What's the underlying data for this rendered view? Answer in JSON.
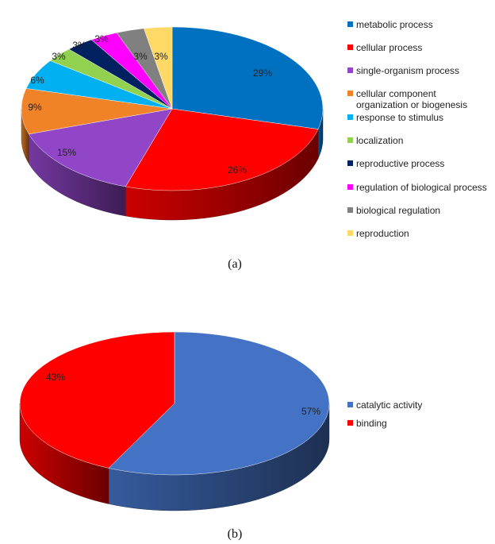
{
  "chart_data": [
    {
      "type": "pie",
      "style": "3d",
      "caption": "(a)",
      "categories": [
        "metabolic process",
        "cellular process",
        "single-organism process",
        "cellular component organization or biogenesis",
        "response to stimulus",
        "localization",
        "reproductive process",
        "regulation of biological process",
        "biological regulation",
        "reproduction"
      ],
      "legend_lines": [
        [
          "metabolic process"
        ],
        [
          "cellular process"
        ],
        [
          "single-organism process"
        ],
        [
          "cellular component",
          "organization or biogenesis"
        ],
        [
          "response to stimulus"
        ],
        [
          "localization"
        ],
        [
          "reproductive process"
        ],
        [
          "regulation of biological process"
        ],
        [
          "biological regulation"
        ],
        [
          "reproduction"
        ]
      ],
      "values": [
        29,
        26,
        15,
        9,
        6,
        3,
        3,
        3,
        3,
        3
      ],
      "labels": [
        "29%",
        "26%",
        "15%",
        "9%",
        "6%",
        "3%",
        "3%",
        "3%",
        "3%",
        "3%"
      ],
      "colors": [
        "#0070C0",
        "#FF0000",
        "#9146C8",
        "#F08228",
        "#00B0F0",
        "#92D050",
        "#002060",
        "#FF00FF",
        "#808080",
        "#FFD966"
      ],
      "legend_position": "right"
    },
    {
      "type": "pie",
      "style": "3d",
      "caption": "(b)",
      "categories": [
        "catalytic activity",
        "binding"
      ],
      "legend_lines": [
        [
          "catalytic activity"
        ],
        [
          "binding"
        ]
      ],
      "values": [
        57,
        43
      ],
      "labels": [
        "57%",
        "43%"
      ],
      "colors": [
        "#4472C4",
        "#FF0000"
      ],
      "legend_position": "right"
    }
  ]
}
